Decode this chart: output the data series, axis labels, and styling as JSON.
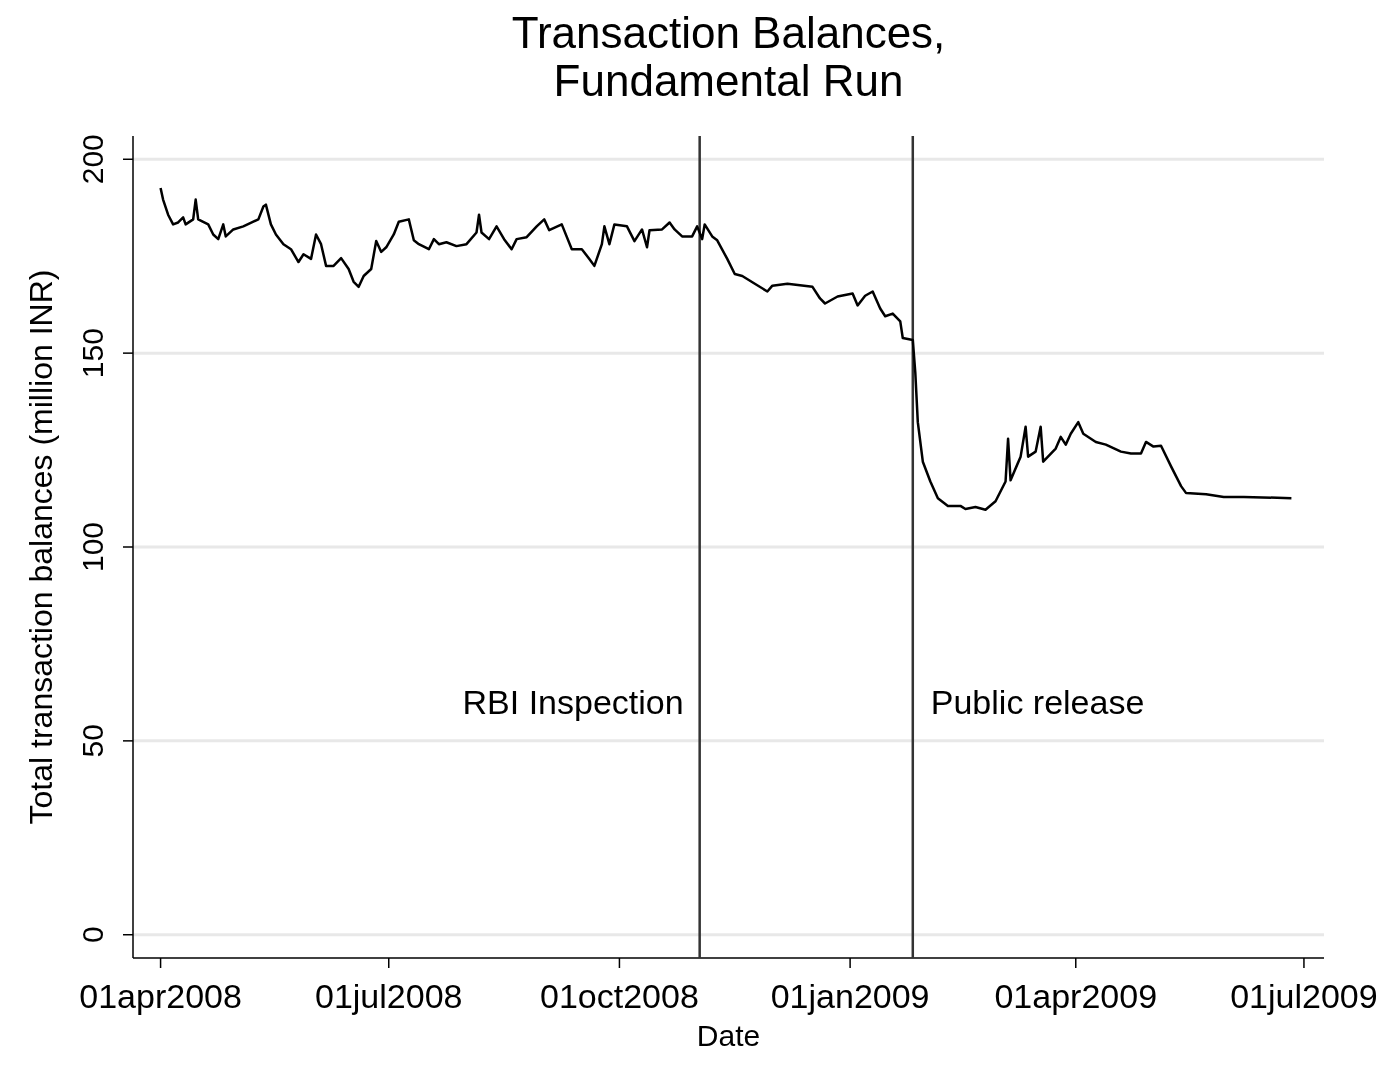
{
  "chart_data": {
    "type": "line",
    "title": "Transaction Balances,\nFundamental Run",
    "xlabel": "Date",
    "ylabel": "Total transaction balances (million INR)",
    "x": [
      "2008-04-01",
      "2008-04-02",
      "2008-04-04",
      "2008-04-06",
      "2008-04-08",
      "2008-04-10",
      "2008-04-11",
      "2008-04-14",
      "2008-04-15",
      "2008-04-16",
      "2008-04-20",
      "2008-04-22",
      "2008-04-24",
      "2008-04-26",
      "2008-04-27",
      "2008-04-30",
      "2008-05-04",
      "2008-05-10",
      "2008-05-12",
      "2008-05-13",
      "2008-05-15",
      "2008-05-17",
      "2008-05-20",
      "2008-05-23",
      "2008-05-26",
      "2008-05-28",
      "2008-05-31",
      "2008-06-02",
      "2008-06-04",
      "2008-06-06",
      "2008-06-09",
      "2008-06-12",
      "2008-06-15",
      "2008-06-17",
      "2008-06-19",
      "2008-06-21",
      "2008-06-24",
      "2008-06-26",
      "2008-06-28",
      "2008-06-30",
      "2008-07-03",
      "2008-07-05",
      "2008-07-09",
      "2008-07-11",
      "2008-07-13",
      "2008-07-17",
      "2008-07-19",
      "2008-07-21",
      "2008-07-24",
      "2008-07-28",
      "2008-08-01",
      "2008-08-05",
      "2008-08-06",
      "2008-08-07",
      "2008-08-10",
      "2008-08-13",
      "2008-08-16",
      "2008-08-19",
      "2008-08-21",
      "2008-08-25",
      "2008-08-29",
      "2008-09-01",
      "2008-09-03",
      "2008-09-08",
      "2008-09-12",
      "2008-09-16",
      "2008-09-19",
      "2008-09-21",
      "2008-09-24",
      "2008-09-25",
      "2008-09-27",
      "2008-09-29",
      "2008-10-04",
      "2008-10-07",
      "2008-10-10",
      "2008-10-12",
      "2008-10-13",
      "2008-10-18",
      "2008-10-21",
      "2008-10-23",
      "2008-10-26",
      "2008-10-30",
      "2008-11-01",
      "2008-11-03",
      "2008-11-04",
      "2008-11-07",
      "2008-11-09",
      "2008-11-13",
      "2008-11-16",
      "2008-11-19",
      "2008-11-24",
      "2008-11-29",
      "2008-12-01",
      "2008-12-07",
      "2008-12-17",
      "2008-12-20",
      "2008-12-22",
      "2008-12-27",
      "2009-01-02",
      "2009-01-04",
      "2009-01-07",
      "2009-01-10",
      "2009-01-13",
      "2009-01-15",
      "2009-01-18",
      "2009-01-21",
      "2009-01-22",
      "2009-01-26",
      "2009-01-27",
      "2009-01-28",
      "2009-01-30",
      "2009-02-02",
      "2009-02-05",
      "2009-02-09",
      "2009-02-14",
      "2009-02-16",
      "2009-02-20",
      "2009-02-24",
      "2009-02-28",
      "2009-03-04",
      "2009-03-05",
      "2009-03-06",
      "2009-03-10",
      "2009-03-12",
      "2009-03-13",
      "2009-03-16",
      "2009-03-18",
      "2009-03-19",
      "2009-03-24",
      "2009-03-26",
      "2009-03-28",
      "2009-03-30",
      "2009-04-02",
      "2009-04-04",
      "2009-04-09",
      "2009-04-13",
      "2009-04-19",
      "2009-04-23",
      "2009-04-27",
      "2009-04-29",
      "2009-05-02",
      "2009-05-05",
      "2009-05-09",
      "2009-05-13",
      "2009-05-15",
      "2009-05-23",
      "2009-05-30",
      "2009-06-07",
      "2009-06-26"
    ],
    "series": [
      {
        "color": "#000000",
        "values": [
          192.6,
          189.6,
          185.7,
          183.2,
          183.7,
          185,
          183.2,
          184.5,
          189.6,
          184.5,
          183.2,
          180.6,
          179.4,
          183.2,
          180.1,
          181.9,
          182.7,
          184.5,
          187.8,
          188.3,
          183.2,
          180.6,
          178.1,
          176.8,
          173.5,
          175.5,
          174.3,
          180.6,
          178.1,
          172.5,
          172.5,
          174.5,
          171.7,
          168.4,
          167.1,
          169.9,
          171.7,
          178.9,
          176.1,
          177.3,
          180.6,
          183.9,
          184.5,
          179.1,
          178.1,
          176.8,
          179.4,
          178.1,
          178.6,
          177.6,
          178.1,
          181.1,
          185.7,
          181.1,
          179.4,
          182.7,
          179.4,
          176.8,
          179.4,
          179.9,
          182.7,
          184.5,
          181.7,
          183.2,
          176.8,
          176.8,
          174.3,
          172.5,
          178.1,
          182.7,
          178.1,
          183.2,
          182.7,
          178.9,
          181.9,
          177.3,
          181.7,
          181.9,
          183.7,
          181.9,
          180.1,
          180.1,
          182.7,
          179.4,
          183.2,
          180.1,
          179.1,
          174.3,
          170.4,
          169.9,
          167.9,
          165.9,
          167.4,
          167.9,
          167.1,
          164.1,
          162.8,
          164.6,
          165.4,
          162.3,
          164.8,
          165.9,
          161.5,
          159.5,
          160.2,
          158.2,
          153.9,
          153.4,
          145,
          132.2,
          122,
          116.9,
          112.6,
          110.6,
          110.6,
          109.8,
          110.3,
          109.6,
          111.8,
          116.9,
          127.9,
          117.2,
          123.3,
          131,
          123.3,
          124.6,
          131,
          122,
          125.4,
          128.4,
          126.4,
          129.2,
          132.2,
          129.2,
          127.1,
          126.4,
          124.6,
          124.1,
          124.1,
          127.1,
          125.9,
          126.1,
          120.8,
          115.7,
          113.9,
          113.6,
          112.9,
          112.9,
          112.6
        ]
      }
    ],
    "xlim": [
      "2008-03-21",
      "2009-07-09"
    ],
    "xticks": [
      {
        "value": "2008-04-01",
        "label": "01apr2008"
      },
      {
        "value": "2008-07-01",
        "label": "01jul2008"
      },
      {
        "value": "2008-10-01",
        "label": "01oct2008"
      },
      {
        "value": "2009-01-01",
        "label": "01jan2009"
      },
      {
        "value": "2009-04-01",
        "label": "01apr2009"
      },
      {
        "value": "2009-07-01",
        "label": "01jul2009"
      }
    ],
    "ylim": [
      -6,
      206
    ],
    "yticks": [
      0,
      50,
      100,
      150,
      200
    ],
    "grid": "y",
    "ref_lines": [
      {
        "axis": "x",
        "value": "2008-11-02",
        "label": "RBI Inspection",
        "color": "#333333"
      },
      {
        "axis": "x",
        "value": "2009-01-26",
        "label": "Public release",
        "color": "#333333"
      }
    ]
  }
}
